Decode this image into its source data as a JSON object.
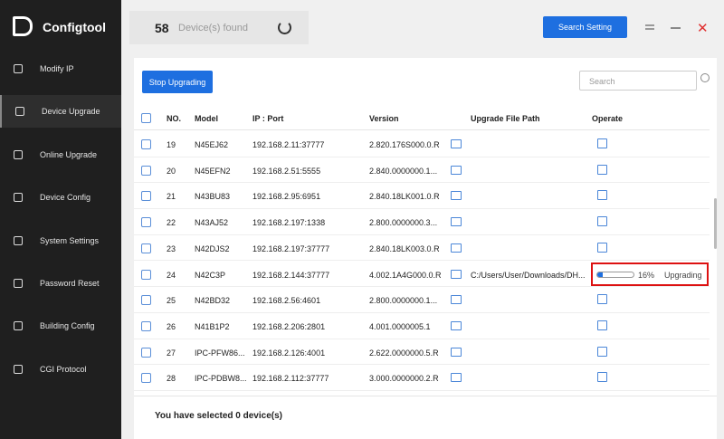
{
  "app": {
    "title": "Configtool"
  },
  "sidebar": {
    "items": [
      "Modify IP",
      "Device Upgrade",
      "Online Upgrade",
      "Device Config",
      "System Settings",
      "Password Reset",
      "Building Config",
      "CGI Protocol"
    ],
    "active": 1
  },
  "header": {
    "count": 58,
    "count_label": "Device(s) found",
    "search_setting": "Search Setting"
  },
  "toolbar": {
    "stop": "Stop Upgrading",
    "search_placeholder": "Search"
  },
  "table": {
    "columns": [
      "NO.",
      "Model",
      "IP : Port",
      "Version",
      "Upgrade File Path",
      "Operate"
    ],
    "rows": [
      {
        "no": 19,
        "model": "N45EJ62",
        "ip": "192.168.2.11:37777",
        "version": "2.820.176S000.0.R"
      },
      {
        "no": 20,
        "model": "N45EFN2",
        "ip": "192.168.2.51:5555",
        "version": "2.840.0000000.1..."
      },
      {
        "no": 21,
        "model": "N43BU83",
        "ip": "192.168.2.95:6951",
        "version": "2.840.18LK001.0.R"
      },
      {
        "no": 22,
        "model": "N43AJ52",
        "ip": "192.168.2.197:1338",
        "version": "2.800.0000000.3..."
      },
      {
        "no": 23,
        "model": "N42DJS2",
        "ip": "192.168.2.197:37777",
        "version": "2.840.18LK003.0.R"
      },
      {
        "no": 24,
        "model": "N42C3P",
        "ip": "192.168.2.144:37777",
        "version": "4.002.1A4G000.0.R",
        "path": "C:/Users/User/Downloads/DH...",
        "progress": {
          "value": 16,
          "label": "16%"
        },
        "status": "Upgrading"
      },
      {
        "no": 25,
        "model": "N42BD32",
        "ip": "192.168.2.56:4601",
        "version": "2.800.0000000.1..."
      },
      {
        "no": 26,
        "model": "N41B1P2",
        "ip": "192.168.2.206:2801",
        "version": "4.001.0000005.1"
      },
      {
        "no": 27,
        "model": "IPC-PFW86...",
        "ip": "192.168.2.126:4001",
        "version": "2.622.0000000.5.R"
      },
      {
        "no": 28,
        "model": "IPC-PDBW8...",
        "ip": "192.168.2.112:37777",
        "version": "3.000.0000000.2.R"
      }
    ]
  },
  "footer": {
    "selected": "You have selected 0  device(s)"
  }
}
